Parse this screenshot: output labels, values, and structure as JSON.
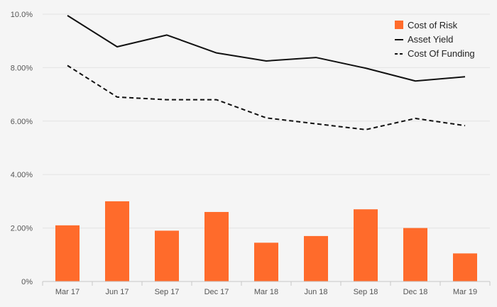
{
  "chart_data": {
    "type": "bar",
    "title": "",
    "xlabel": "",
    "ylabel": "",
    "categories": [
      "Mar 17",
      "Jun 17",
      "Sep 17",
      "Dec 17",
      "Mar 18",
      "Jun 18",
      "Sep 18",
      "Dec 18",
      "Mar 19"
    ],
    "ylim": [
      0,
      10
    ],
    "y_ticks": [
      0,
      2,
      4,
      6,
      8,
      10
    ],
    "y_tick_labels": [
      "0%",
      "2.00%",
      "4.00%",
      "6.00%",
      "8.00%",
      "10.0%"
    ],
    "grid": true,
    "legend_position": "top-right",
    "series": [
      {
        "name": "Cost of Risk",
        "type": "bar",
        "color": "#ff6b2b",
        "values": [
          2.1,
          3.0,
          1.9,
          2.6,
          1.45,
          1.7,
          2.7,
          2.0,
          1.05
        ]
      },
      {
        "name": "Asset Yield",
        "type": "line",
        "style": "solid",
        "color": "#111111",
        "values": [
          9.95,
          8.78,
          9.22,
          8.55,
          8.25,
          8.38,
          7.98,
          7.5,
          7.66
        ]
      },
      {
        "name": "Cost Of Funding",
        "type": "line",
        "style": "dashed",
        "color": "#111111",
        "values": [
          8.08,
          6.9,
          6.8,
          6.8,
          6.12,
          5.9,
          5.68,
          6.1,
          5.83
        ]
      }
    ]
  }
}
